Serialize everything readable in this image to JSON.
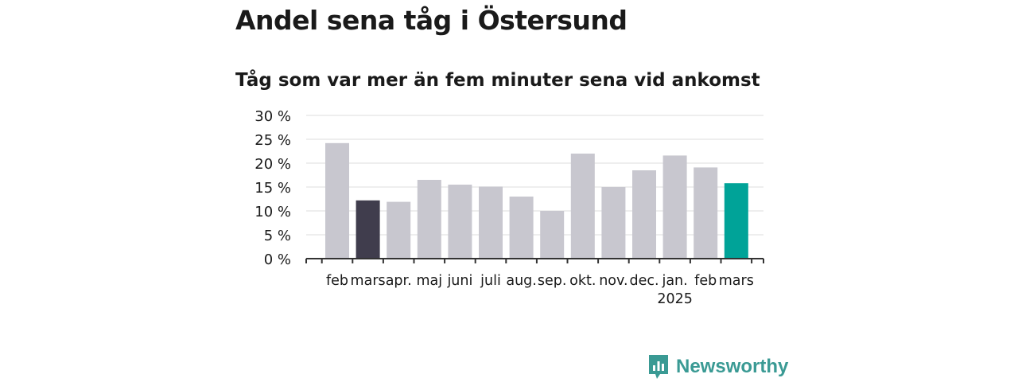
{
  "title": "Andel sena tåg i Östersund",
  "subtitle": "Tåg som var mer än fem minuter sena vid ankomst",
  "brand": {
    "name": "Newsworthy",
    "color": "#3a9a94",
    "icon": "newsworthy-logo-icon"
  },
  "chart_data": {
    "type": "bar",
    "title": "Andel sena tåg i Östersund",
    "subtitle": "Tåg som var mer än fem minuter sena vid ankomst",
    "categories": [
      "feb",
      "mars",
      "apr.",
      "maj",
      "juni",
      "juli",
      "aug.",
      "sep.",
      "okt.",
      "nov.",
      "dec.",
      "jan.",
      "feb",
      "mars"
    ],
    "year_labels": [
      {
        "index": 11,
        "label": "2025"
      }
    ],
    "values": [
      24.2,
      12.2,
      11.9,
      16.5,
      15.5,
      15.1,
      13.0,
      10.0,
      22.0,
      15.0,
      18.5,
      21.6,
      19.1,
      15.8
    ],
    "bar_colors": [
      "#c8c7cf",
      "#403d4d",
      "#c8c7cf",
      "#c8c7cf",
      "#c8c7cf",
      "#c8c7cf",
      "#c8c7cf",
      "#c8c7cf",
      "#c8c7cf",
      "#c8c7cf",
      "#c8c7cf",
      "#c8c7cf",
      "#c8c7cf",
      "#00a398"
    ],
    "yticks": [
      0,
      5,
      10,
      15,
      20,
      25,
      30
    ],
    "ytick_labels": [
      "0 %",
      "5 %",
      "10 %",
      "15 %",
      "20 %",
      "25 %",
      "30 %"
    ],
    "ylim": [
      0,
      30
    ],
    "grid": true,
    "xlabel": "",
    "ylabel": ""
  }
}
